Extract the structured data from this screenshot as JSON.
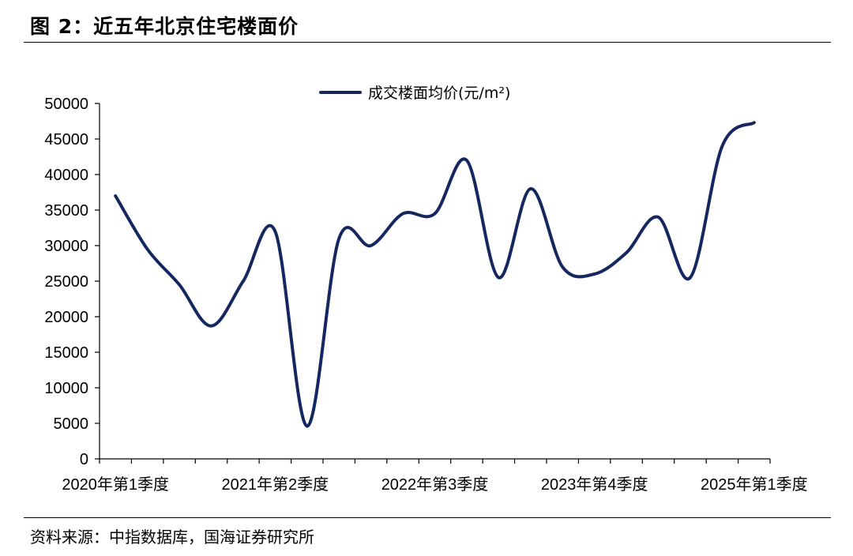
{
  "header": {
    "title": "图 2：近五年北京住宅楼面价"
  },
  "footer": {
    "source": "资料来源：中指数据库，国海证券研究所"
  },
  "chart_data": {
    "type": "line",
    "title": "",
    "xlabel": "",
    "ylabel": "",
    "ylim": [
      0,
      50000
    ],
    "yticks": [
      0,
      5000,
      10000,
      15000,
      20000,
      25000,
      30000,
      35000,
      40000,
      45000,
      50000
    ],
    "x_tick_labels": [
      "2020年第1季度",
      "2021年第2季度",
      "2022年第3季度",
      "2023年第4季度",
      "2025年第1季度"
    ],
    "x_tick_label_positions": [
      1,
      6,
      11,
      16,
      21
    ],
    "categories_count": 21,
    "legend": "top-center",
    "grid": false,
    "series": [
      {
        "name": "成交楼面均价(元/m²)",
        "color": "#14275e",
        "values": [
          37000,
          29500,
          24500,
          18700,
          25000,
          32000,
          4600,
          31000,
          30000,
          34500,
          34500,
          42000,
          25500,
          38000,
          27000,
          26000,
          29000,
          34000,
          25500,
          44000,
          47300
        ]
      }
    ]
  }
}
